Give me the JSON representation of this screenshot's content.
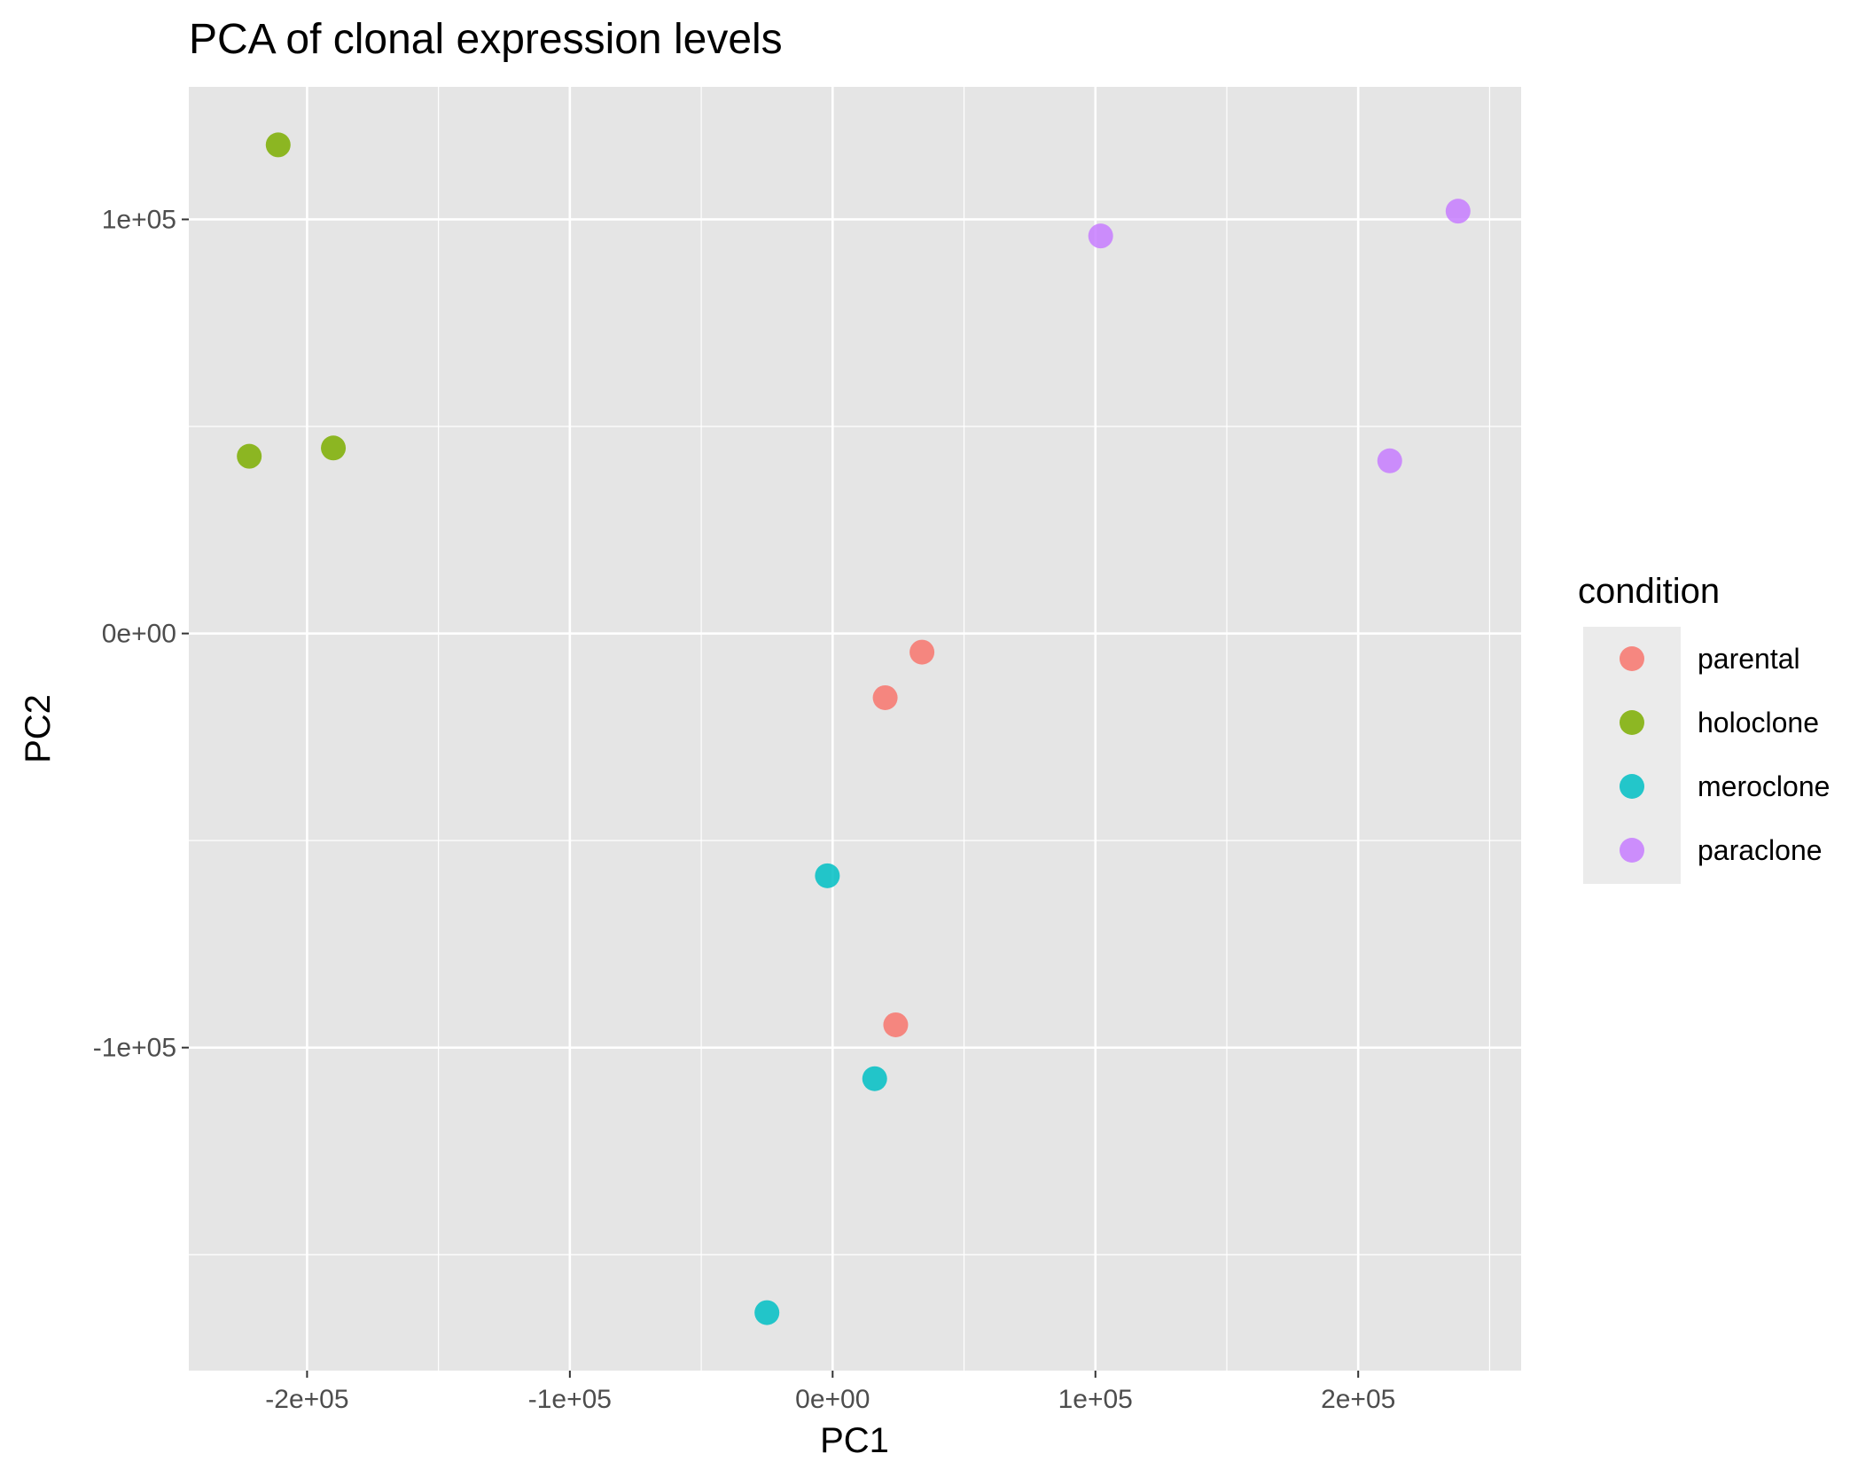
{
  "chart_data": {
    "type": "scatter",
    "title": "PCA of clonal expression levels",
    "xlabel": "PC1",
    "ylabel": "PC2",
    "xlim": [
      -245000,
      262000
    ],
    "ylim": [
      -178000,
      132000
    ],
    "x_ticks": [
      -200000,
      -100000,
      0,
      100000,
      200000
    ],
    "x_tick_labels": [
      "-2e+05",
      "-1e+05",
      "0e+00",
      "1e+05",
      "2e+05"
    ],
    "y_ticks": [
      -100000,
      0,
      100000
    ],
    "y_tick_labels": [
      "-1e+05",
      "0e+00",
      "1e+05"
    ],
    "grid": true,
    "legend_title": "condition",
    "legend_position": "right",
    "background": "#e5e5e5",
    "series": [
      {
        "name": "parental",
        "color": "#f8766d",
        "points": [
          {
            "x": 34000,
            "y": -4500
          },
          {
            "x": 20000,
            "y": -15500
          },
          {
            "x": 24000,
            "y": -94500
          }
        ]
      },
      {
        "name": "holoclone",
        "color": "#7cae00",
        "points": [
          {
            "x": -211000,
            "y": 118000
          },
          {
            "x": -190000,
            "y": 44800
          },
          {
            "x": -222000,
            "y": 42800
          }
        ]
      },
      {
        "name": "meroclone",
        "color": "#00bfc4",
        "points": [
          {
            "x": -2000,
            "y": -58500
          },
          {
            "x": 16000,
            "y": -107500
          },
          {
            "x": -25000,
            "y": -164000
          }
        ]
      },
      {
        "name": "paraclone",
        "color": "#c77cff",
        "points": [
          {
            "x": 102000,
            "y": 96000
          },
          {
            "x": 238000,
            "y": 102000
          },
          {
            "x": 212000,
            "y": 41700
          }
        ]
      }
    ]
  }
}
